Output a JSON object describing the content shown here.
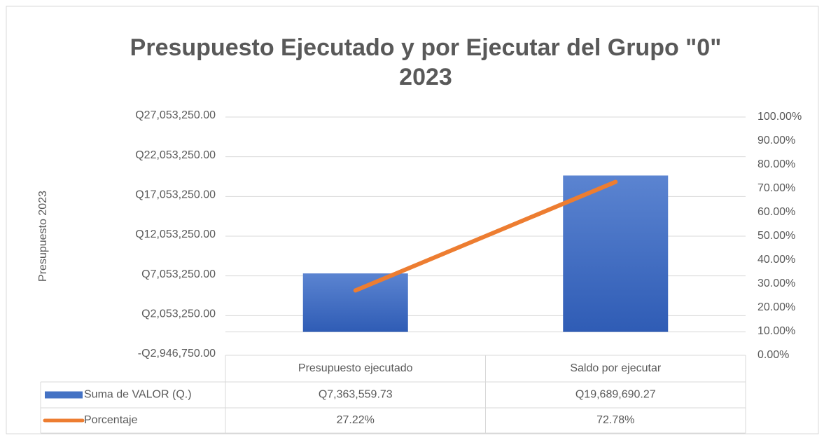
{
  "chart_data": {
    "type": "bar-line",
    "title": [
      "Presupuesto Ejecutado y por Ejecutar del Grupo \"0\"",
      "2023"
    ],
    "y_label": "Presupuesto 2023",
    "categories": [
      "Presupuesto ejecutado",
      "Saldo por ejecutar"
    ],
    "series": [
      {
        "name": "Suma de VALOR (Q.)",
        "type": "bar",
        "color": "#4472c4",
        "values": [
          7363559.73,
          19689690.27
        ],
        "value_labels": [
          "Q7,363,559.73",
          "Q19,689,690.27"
        ]
      },
      {
        "name": "Porcentaje",
        "type": "line",
        "axis": "y2",
        "color": "#ed7d31",
        "values": [
          27.22,
          72.78
        ],
        "value_labels": [
          "27.22%",
          "72.78%"
        ]
      }
    ],
    "ylim": [
      -2946750,
      27053250
    ],
    "yticks": [
      {
        "value": -2946750,
        "label": "-Q2,946,750.00"
      },
      {
        "value": 2053250,
        "label": "Q2,053,250.00"
      },
      {
        "value": 7053250,
        "label": "Q7,053,250.00"
      },
      {
        "value": 12053250,
        "label": "Q12,053,250.00"
      },
      {
        "value": 17053250,
        "label": "Q17,053,250.00"
      },
      {
        "value": 22053250,
        "label": "Q22,053,250.00"
      },
      {
        "value": 27053250,
        "label": "Q27,053,250.00"
      }
    ],
    "y2lim": [
      0,
      100
    ],
    "y2ticks": [
      {
        "value": 0,
        "label": "0.00%"
      },
      {
        "value": 10,
        "label": "10.00%"
      },
      {
        "value": 20,
        "label": "20.00%"
      },
      {
        "value": 30,
        "label": "30.00%"
      },
      {
        "value": 40,
        "label": "40.00%"
      },
      {
        "value": 50,
        "label": "50.00%"
      },
      {
        "value": 60,
        "label": "60.00%"
      },
      {
        "value": 70,
        "label": "70.00%"
      },
      {
        "value": 80,
        "label": "80.00%"
      },
      {
        "value": 90,
        "label": "90.00%"
      },
      {
        "value": 100,
        "label": "100.00%"
      }
    ],
    "grid": true
  }
}
